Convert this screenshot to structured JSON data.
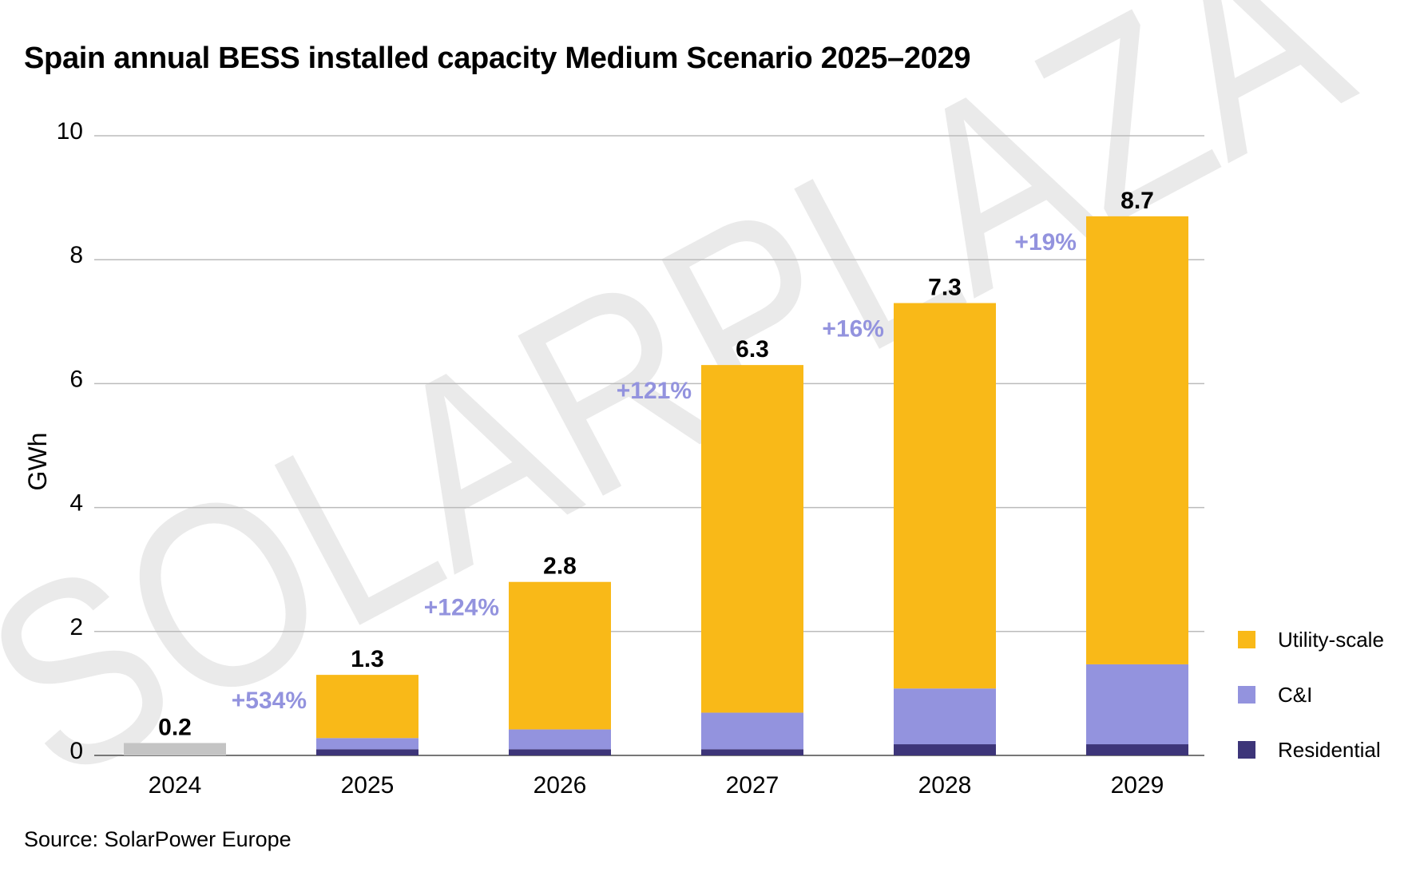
{
  "chart_data": {
    "type": "bar",
    "stacked": true,
    "title": "Spain annual BESS installed capacity Medium Scenario 2025–2029",
    "xlabel": "",
    "ylabel": "GWh",
    "ylim": [
      0,
      10
    ],
    "yticks": [
      0,
      2,
      4,
      6,
      8,
      10
    ],
    "grid": true,
    "legend_placement": "right",
    "categories": [
      "2024",
      "2025",
      "2026",
      "2027",
      "2028",
      "2029"
    ],
    "series": [
      {
        "name": "Residential",
        "color": "#3d3579",
        "values": [
          0,
          0.1,
          0.1,
          0.1,
          0.18,
          0.18
        ]
      },
      {
        "name": "C&I",
        "color": "#9393de",
        "values": [
          0,
          0.18,
          0.32,
          0.59,
          0.9,
          1.29
        ]
      },
      {
        "name": "Utility-scale",
        "color": "#f9b918",
        "values": [
          0,
          1.02,
          2.38,
          5.61,
          6.22,
          7.23
        ]
      }
    ],
    "historical": {
      "category": "2024",
      "value": 0.2,
      "color": "#c4c4c4"
    },
    "totals": [
      "0.2",
      "1.3",
      "2.8",
      "6.3",
      "7.3",
      "8.7"
    ],
    "growth_labels": [
      "",
      "+534%",
      "+124%",
      "+121%",
      "+16%",
      "+19%"
    ],
    "growth_color": "#9393de",
    "source": "Source: SolarPower Europe"
  },
  "watermark": "SOLARPLAZA"
}
